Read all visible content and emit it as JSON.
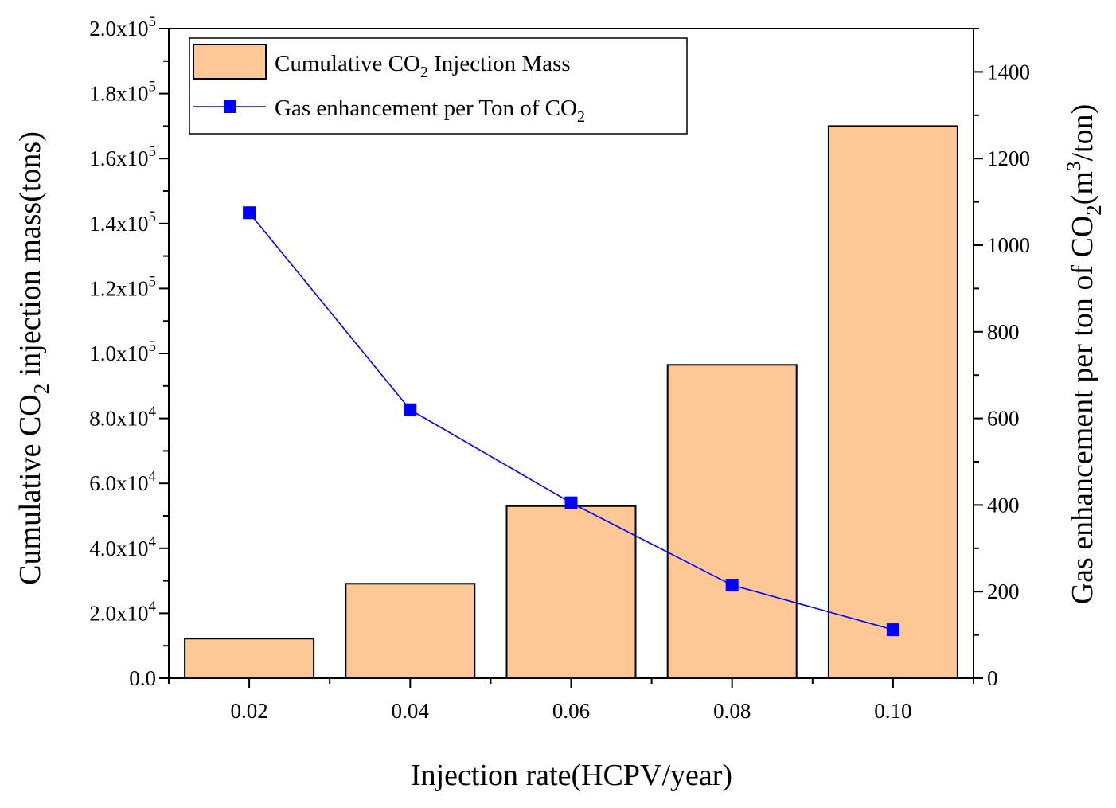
{
  "chart_data": {
    "type": "bar+line",
    "x": {
      "label": "Injection rate(HCPV/year)",
      "categories": [
        "0.02",
        "0.04",
        "0.06",
        "0.08",
        "0.10"
      ],
      "values": [
        0.02,
        0.04,
        0.06,
        0.08,
        0.1
      ]
    },
    "y_left": {
      "label_prefix": "Cumulative CO",
      "label_sub": "2",
      "label_suffix": " injection mass(tons)",
      "ylim": [
        0,
        200000
      ],
      "ticks": [
        {
          "value": 0,
          "mantissa": "0.0",
          "exp": ""
        },
        {
          "value": 20000,
          "mantissa": "2.0x10",
          "exp": "4"
        },
        {
          "value": 40000,
          "mantissa": "4.0x10",
          "exp": "4"
        },
        {
          "value": 60000,
          "mantissa": "6.0x10",
          "exp": "4"
        },
        {
          "value": 80000,
          "mantissa": "8.0x10",
          "exp": "4"
        },
        {
          "value": 100000,
          "mantissa": "1.0x10",
          "exp": "5"
        },
        {
          "value": 120000,
          "mantissa": "1.2x10",
          "exp": "5"
        },
        {
          "value": 140000,
          "mantissa": "1.4x10",
          "exp": "5"
        },
        {
          "value": 160000,
          "mantissa": "1.6x10",
          "exp": "5"
        },
        {
          "value": 180000,
          "mantissa": "1.8x10",
          "exp": "5"
        },
        {
          "value": 200000,
          "mantissa": "2.0x10",
          "exp": "5"
        }
      ]
    },
    "y_right": {
      "label_prefix": "Gas enhancement per ton of CO",
      "label_sub": "2",
      "label_mid": "(m",
      "label_sup": "3",
      "label_suffix": "/ton)",
      "ylim": [
        0,
        1500
      ],
      "ticks": [
        0,
        200,
        400,
        600,
        800,
        1000,
        1200,
        1400
      ]
    },
    "series": [
      {
        "name": "Cumulative CO2 Injection Mass",
        "legend_prefix": "Cumulative CO",
        "legend_sub": "2",
        "legend_suffix": " Injection Mass",
        "type": "bar",
        "axis": "left",
        "values": [
          12200,
          29100,
          53000,
          96500,
          170000
        ],
        "color": "#FDC796"
      },
      {
        "name": "Gas enhancement per Ton of CO2",
        "legend_prefix": "Gas enhancement per Ton of CO",
        "legend_sub": "2",
        "legend_suffix": "",
        "type": "line",
        "axis": "right",
        "values": [
          1075,
          620,
          405,
          215,
          112
        ],
        "color": "#0000FF"
      }
    ]
  }
}
